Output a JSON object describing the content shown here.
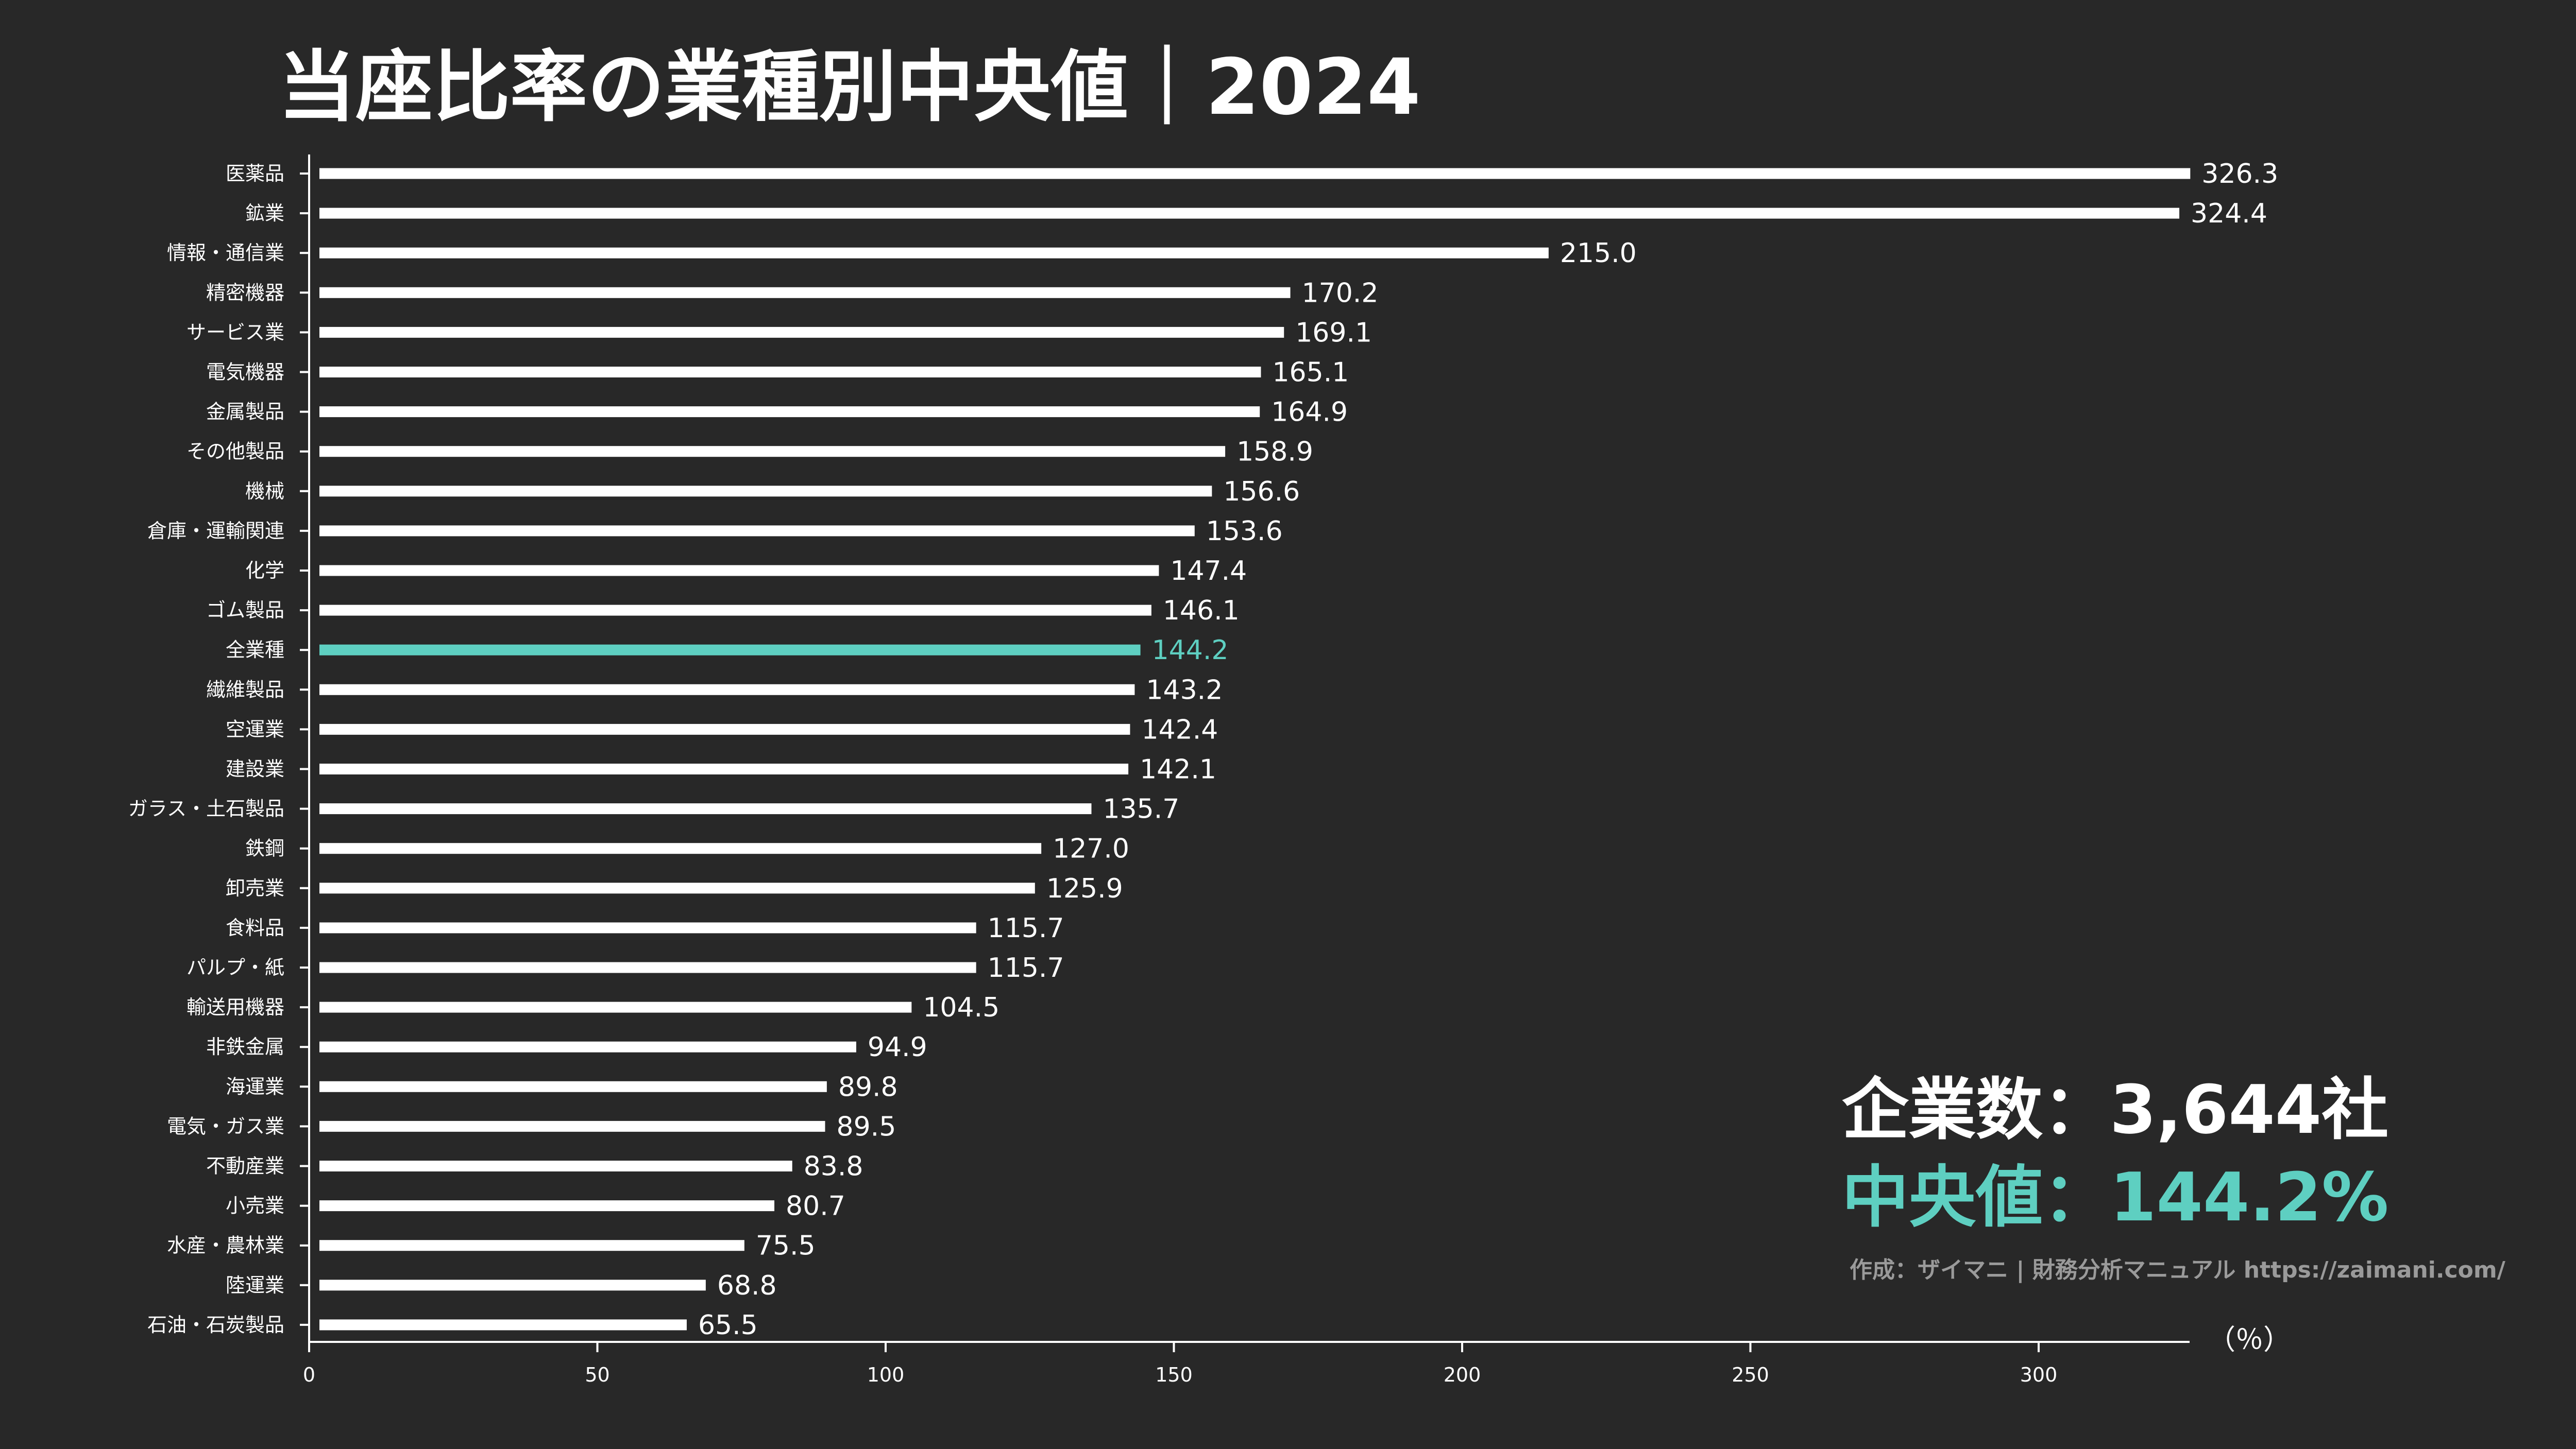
{
  "title": "当座比率の業種別中央値｜2024",
  "summary": {
    "count": "企業数：3,644社",
    "median": "中央値：144.2%"
  },
  "credit": "作成：ザイマニ | 財務分析マニュアル https://zaimani.com/",
  "colors": {
    "background": "#282828",
    "bar": "#ffffff",
    "highlight": "#5ecfc1",
    "axis": "#ffffff",
    "credit": "#9a9a9a"
  },
  "chart_data": {
    "type": "bar",
    "orientation": "horizontal",
    "title": "当座比率の業種別中央値｜2024",
    "xlabel": "（％）",
    "ylabel": "",
    "xlim": [
      0,
      325
    ],
    "xticks": [
      0,
      50,
      100,
      150,
      200,
      250,
      300
    ],
    "grid": false,
    "highlight_category": "全業種",
    "categories": [
      "医薬品",
      "鉱業",
      "情報・通信業",
      "精密機器",
      "サービス業",
      "電気機器",
      "金属製品",
      "その他製品",
      "機械",
      "倉庫・運輸関連",
      "化学",
      "ゴム製品",
      "全業種",
      "繊維製品",
      "空運業",
      "建設業",
      "ガラス・土石製品",
      "鉄鋼",
      "卸売業",
      "食料品",
      "パルプ・紙",
      "輸送用機器",
      "非鉄金属",
      "海運業",
      "電気・ガス業",
      "不動産業",
      "小売業",
      "水産・農林業",
      "陸運業",
      "石油・石炭製品"
    ],
    "values": [
      326.3,
      324.4,
      215.0,
      170.2,
      169.1,
      165.1,
      164.9,
      158.9,
      156.6,
      153.6,
      147.4,
      146.1,
      144.2,
      143.2,
      142.4,
      142.1,
      135.7,
      127.0,
      125.9,
      115.7,
      115.7,
      104.5,
      94.9,
      89.8,
      89.5,
      83.8,
      80.7,
      75.5,
      68.8,
      65.5
    ],
    "value_labels": [
      "326.3",
      "324.4",
      "215.0",
      "170.2",
      "169.1",
      "165.1",
      "164.9",
      "158.9",
      "156.6",
      "153.6",
      "147.4",
      "146.1",
      "144.2",
      "143.2",
      "142.4",
      "142.1",
      "135.7",
      "127.0",
      "125.9",
      "115.7",
      "115.7",
      "104.5",
      "94.9",
      "89.8",
      "89.5",
      "83.8",
      "80.7",
      "75.5",
      "68.8",
      "65.5"
    ]
  }
}
